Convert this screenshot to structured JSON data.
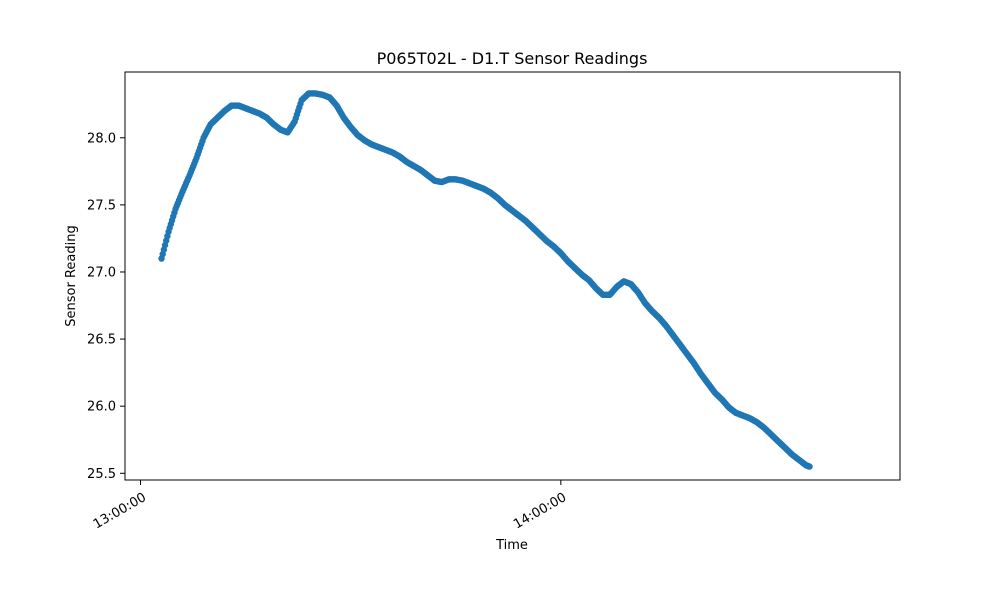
{
  "chart_data": {
    "type": "scatter",
    "title": "P065T02L - D1.T Sensor Readings",
    "xlabel": "Time",
    "ylabel": "Sensor Reading",
    "x_ticks": [
      "13:00:00",
      "14:00:00"
    ],
    "y_ticks": [
      25.5,
      26.0,
      26.5,
      27.0,
      27.5,
      28.0
    ],
    "xlim": [
      "12:57:47",
      "14:48:25"
    ],
    "ylim": [
      25.45,
      28.49
    ],
    "grid": false,
    "series": [
      {
        "color": "#1f77b4",
        "points": [
          [
            "13:03:00",
            27.1
          ],
          [
            "13:04:00",
            27.3
          ],
          [
            "13:05:00",
            27.47
          ],
          [
            "13:06:00",
            27.6
          ],
          [
            "13:07:00",
            27.72
          ],
          [
            "13:08:00",
            27.85
          ],
          [
            "13:09:00",
            28.0
          ],
          [
            "13:10:00",
            28.1
          ],
          [
            "13:11:00",
            28.15
          ],
          [
            "13:12:00",
            28.2
          ],
          [
            "13:13:00",
            28.24
          ],
          [
            "13:14:00",
            28.24
          ],
          [
            "13:15:00",
            28.22
          ],
          [
            "13:16:00",
            28.2
          ],
          [
            "13:17:00",
            28.18
          ],
          [
            "13:18:00",
            28.15
          ],
          [
            "13:19:00",
            28.1
          ],
          [
            "13:20:00",
            28.06
          ],
          [
            "13:21:00",
            28.04
          ],
          [
            "13:22:00",
            28.12
          ],
          [
            "13:23:00",
            28.28
          ],
          [
            "13:24:00",
            28.33
          ],
          [
            "13:25:00",
            28.33
          ],
          [
            "13:26:00",
            28.32
          ],
          [
            "13:27:00",
            28.3
          ],
          [
            "13:28:00",
            28.24
          ],
          [
            "13:29:00",
            28.15
          ],
          [
            "13:30:00",
            28.08
          ],
          [
            "13:31:00",
            28.02
          ],
          [
            "13:32:00",
            27.98
          ],
          [
            "13:33:00",
            27.95
          ],
          [
            "13:34:00",
            27.93
          ],
          [
            "13:35:00",
            27.91
          ],
          [
            "13:36:00",
            27.89
          ],
          [
            "13:37:00",
            27.86
          ],
          [
            "13:38:00",
            27.82
          ],
          [
            "13:39:00",
            27.79
          ],
          [
            "13:40:00",
            27.76
          ],
          [
            "13:41:00",
            27.72
          ],
          [
            "13:42:00",
            27.68
          ],
          [
            "13:43:00",
            27.67
          ],
          [
            "13:44:00",
            27.69
          ],
          [
            "13:45:00",
            27.69
          ],
          [
            "13:46:00",
            27.68
          ],
          [
            "13:47:00",
            27.66
          ],
          [
            "13:48:00",
            27.64
          ],
          [
            "13:49:00",
            27.62
          ],
          [
            "13:50:00",
            27.59
          ],
          [
            "13:51:00",
            27.55
          ],
          [
            "13:52:00",
            27.5
          ],
          [
            "13:53:00",
            27.46
          ],
          [
            "13:54:00",
            27.42
          ],
          [
            "13:55:00",
            27.38
          ],
          [
            "13:56:00",
            27.33
          ],
          [
            "13:57:00",
            27.28
          ],
          [
            "13:58:00",
            27.23
          ],
          [
            "13:59:00",
            27.19
          ],
          [
            "14:00:00",
            27.14
          ],
          [
            "14:01:00",
            27.08
          ],
          [
            "14:02:00",
            27.03
          ],
          [
            "14:03:00",
            26.98
          ],
          [
            "14:04:00",
            26.94
          ],
          [
            "14:05:00",
            26.88
          ],
          [
            "14:06:00",
            26.83
          ],
          [
            "14:07:00",
            26.83
          ],
          [
            "14:08:00",
            26.89
          ],
          [
            "14:09:00",
            26.93
          ],
          [
            "14:10:00",
            26.91
          ],
          [
            "14:11:00",
            26.85
          ],
          [
            "14:12:00",
            26.77
          ],
          [
            "14:13:00",
            26.71
          ],
          [
            "14:14:00",
            26.66
          ],
          [
            "14:15:00",
            26.6
          ],
          [
            "14:16:00",
            26.53
          ],
          [
            "14:17:00",
            26.46
          ],
          [
            "14:18:00",
            26.39
          ],
          [
            "14:19:00",
            26.32
          ],
          [
            "14:20:00",
            26.24
          ],
          [
            "14:21:00",
            26.17
          ],
          [
            "14:22:00",
            26.1
          ],
          [
            "14:23:00",
            26.05
          ],
          [
            "14:24:00",
            25.99
          ],
          [
            "14:25:00",
            25.95
          ],
          [
            "14:26:00",
            25.93
          ],
          [
            "14:27:00",
            25.91
          ],
          [
            "14:28:00",
            25.88
          ],
          [
            "14:29:00",
            25.84
          ],
          [
            "14:30:00",
            25.79
          ],
          [
            "14:31:00",
            25.74
          ],
          [
            "14:32:00",
            25.69
          ],
          [
            "14:33:00",
            25.64
          ],
          [
            "14:34:00",
            25.6
          ],
          [
            "14:35:00",
            25.56
          ],
          [
            "14:35:30",
            25.55
          ]
        ]
      }
    ]
  }
}
